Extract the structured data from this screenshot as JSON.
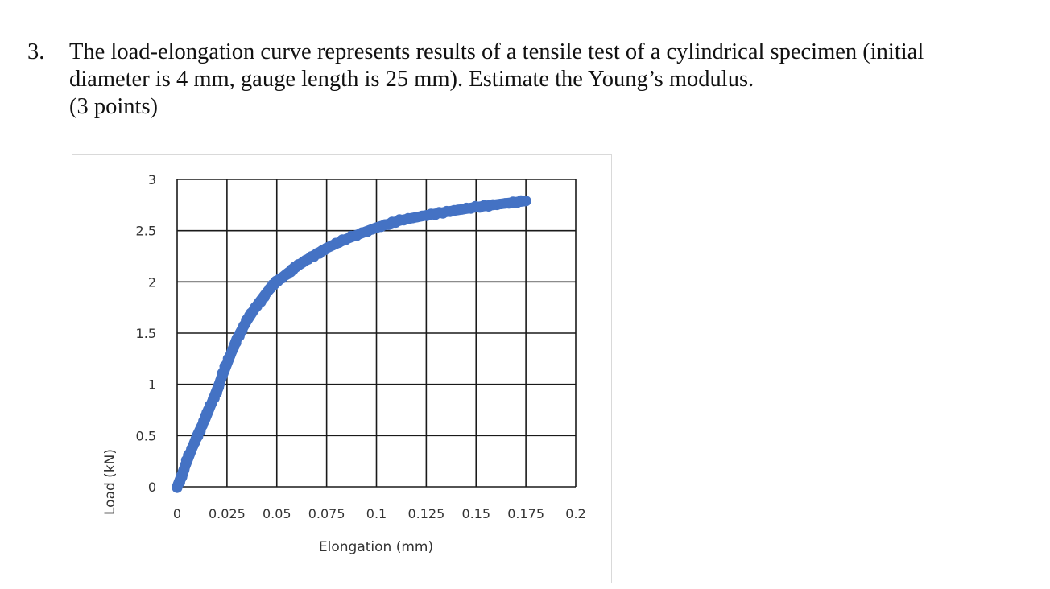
{
  "question": {
    "number": "3.",
    "lines": [
      "The load-elongation curve represents results of a tensile test of a cylindrical specimen (initial",
      "diameter is 4 mm, gauge length is 25 mm). Estimate the Young’s modulus.",
      "(3 points)"
    ]
  },
  "chart_data": {
    "type": "scatter",
    "title": "",
    "xlabel": "Elongation (mm)",
    "ylabel": "Load (kN)",
    "xlim": [
      0,
      0.2
    ],
    "ylim": [
      0,
      3
    ],
    "x_ticks": [
      "0",
      "0.025",
      "0.05",
      "0.075",
      "0.1",
      "0.125",
      "0.15",
      "0.175",
      "0.2"
    ],
    "y_ticks": [
      "0",
      "0.5",
      "1",
      "1.5",
      "2",
      "2.5",
      "3"
    ],
    "grid": true,
    "legend": "none",
    "series": [
      {
        "name": "Load-elongation",
        "color": "#4472C4",
        "x": [
          0,
          0.003,
          0.006,
          0.01,
          0.014,
          0.018,
          0.021,
          0.025,
          0.03,
          0.035,
          0.04,
          0.045,
          0.05,
          0.055,
          0.06,
          0.067,
          0.075,
          0.085,
          0.1,
          0.112,
          0.125,
          0.137,
          0.15,
          0.162,
          0.175
        ],
        "y": [
          0,
          0.15,
          0.3,
          0.5,
          0.66,
          0.85,
          1.0,
          1.2,
          1.45,
          1.62,
          1.77,
          1.9,
          2.0,
          2.08,
          2.15,
          2.24,
          2.33,
          2.42,
          2.53,
          2.6,
          2.65,
          2.69,
          2.73,
          2.76,
          2.79
        ]
      }
    ]
  }
}
